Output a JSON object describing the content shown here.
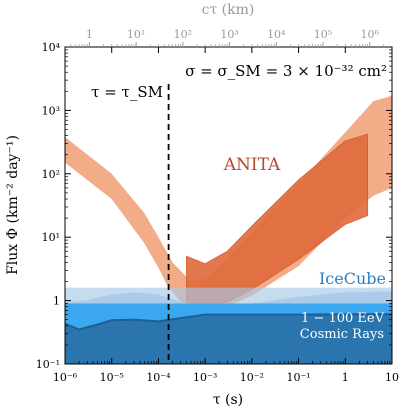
{
  "chart_data": {
    "type": "area",
    "xlabel": "τ (s)",
    "ylabel": "Flux Φ (km⁻² day⁻¹)",
    "top_xlabel": "cτ (km)",
    "xscale": "log",
    "yscale": "log",
    "xlim": [
      1e-06,
      10
    ],
    "ylim": [
      0.1,
      10000
    ],
    "top_xlim_km": [
      0.3,
      3000000
    ],
    "x_ticks": [
      {
        "value": 1e-06,
        "label": "10⁻⁶"
      },
      {
        "value": 1e-05,
        "label": "10⁻⁵"
      },
      {
        "value": 0.0001,
        "label": "10⁻⁴"
      },
      {
        "value": 0.001,
        "label": "10⁻³"
      },
      {
        "value": 0.01,
        "label": "10⁻²"
      },
      {
        "value": 0.1,
        "label": "10⁻¹"
      },
      {
        "value": 1,
        "label": "1"
      },
      {
        "value": 10,
        "label": "10"
      }
    ],
    "y_ticks": [
      {
        "value": 0.1,
        "label": "10⁻¹"
      },
      {
        "value": 1,
        "label": "1"
      },
      {
        "value": 10,
        "label": "10¹"
      },
      {
        "value": 100,
        "label": "10²"
      },
      {
        "value": 1000,
        "label": "10³"
      },
      {
        "value": 10000,
        "label": "10⁴"
      }
    ],
    "top_ticks": [
      {
        "value": 1,
        "label": "1"
      },
      {
        "value": 10,
        "label": "10¹"
      },
      {
        "value": 100,
        "label": "10²"
      },
      {
        "value": 1000,
        "label": "10³"
      },
      {
        "value": 10000,
        "label": "10⁴"
      },
      {
        "value": 100000,
        "label": "10⁵"
      },
      {
        "value": 1000000,
        "label": "10⁶"
      }
    ],
    "annotations": {
      "cross_section": "σ = σ_SM = 3 × 10⁻³² cm²",
      "tau_sm": "τ = τ_SM",
      "tau_sm_value": 0.000165
    },
    "series": [
      {
        "name": "ANITA",
        "role": "outer",
        "color": "#f0a078",
        "upper": [
          [
            3e-07,
            430
          ],
          [
            1e-06,
            380
          ],
          [
            1e-05,
            100
          ],
          [
            5e-05,
            24
          ],
          [
            0.0001,
            10
          ],
          [
            0.0002,
            4
          ],
          [
            0.0005,
            2.0
          ],
          [
            0.001,
            2.2
          ],
          [
            0.003,
            4.5
          ],
          [
            0.01,
            12
          ],
          [
            0.1,
            70
          ],
          [
            1,
            450
          ],
          [
            4,
            1400
          ],
          [
            10,
            1700
          ]
        ],
        "lower": [
          [
            10,
            60
          ],
          [
            4,
            45
          ],
          [
            1,
            20
          ],
          [
            0.1,
            3.5
          ],
          [
            0.01,
            1.2
          ],
          [
            0.003,
            0.8
          ],
          [
            0.001,
            0.72
          ],
          [
            0.0005,
            0.75
          ],
          [
            0.0003,
            0.95
          ],
          [
            0.00015,
            1.8
          ],
          [
            0.0001,
            3.3
          ],
          [
            5e-05,
            8
          ],
          [
            1e-05,
            40
          ],
          [
            1e-06,
            150
          ],
          [
            3e-07,
            350
          ]
        ]
      },
      {
        "name": "ANITA",
        "role": "inner",
        "color": "#e06a3c",
        "upper": [
          [
            0.0004,
            5.0
          ],
          [
            0.001,
            3.8
          ],
          [
            0.003,
            6.0
          ],
          [
            0.01,
            15
          ],
          [
            0.1,
            80
          ],
          [
            1,
            330
          ],
          [
            3,
            420
          ]
        ],
        "lower": [
          [
            3,
            22
          ],
          [
            1,
            16
          ],
          [
            0.1,
            4.5
          ],
          [
            0.01,
            1.5
          ],
          [
            0.003,
            0.95
          ],
          [
            0.001,
            0.82
          ],
          [
            0.0004,
            0.95
          ]
        ]
      },
      {
        "name": "IceCube",
        "role": "icecube",
        "color": "#8fc3ea",
        "upper": [
          [
            1e-06,
            0.95
          ],
          [
            3e-06,
            1.02
          ],
          [
            1e-05,
            1.25
          ],
          [
            3e-05,
            1.35
          ],
          [
            0.0001,
            1.25
          ],
          [
            0.0003,
            0.95
          ],
          [
            0.001,
            0.85
          ],
          [
            0.01,
            0.9
          ],
          [
            0.1,
            1.15
          ],
          [
            1,
            1.35
          ],
          [
            10,
            1.4
          ]
        ],
        "lower": [
          [
            10,
            0.1
          ],
          [
            1e-06,
            0.1
          ]
        ]
      },
      {
        "name": "1 − 100 EeV Cosmic Rays",
        "role": "band",
        "color": "#a9c8e6",
        "value": 1.6
      },
      {
        "name": "1 − 100 EeV Cosmic Rays",
        "role": "cosmic-upper",
        "color": "#3aa7ef",
        "value": 0.9
      },
      {
        "name": "1 − 100 EeV Cosmic Rays",
        "role": "cosmic-lower",
        "color": "#2a75ae",
        "line_color": "#1d5f95",
        "upper": [
          [
            1e-06,
            0.43
          ],
          [
            2e-06,
            0.35
          ],
          [
            5e-06,
            0.42
          ],
          [
            1e-05,
            0.49
          ],
          [
            3e-05,
            0.5
          ],
          [
            0.0001,
            0.47
          ],
          [
            0.0003,
            0.53
          ],
          [
            0.001,
            0.6
          ],
          [
            0.01,
            0.6
          ],
          [
            0.1,
            0.6
          ],
          [
            1,
            0.61
          ],
          [
            10,
            0.61
          ]
        ],
        "lower": [
          [
            10,
            0.1
          ],
          [
            1e-06,
            0.1
          ]
        ]
      }
    ],
    "labels": {
      "anita": "ANITA",
      "icecube": "IceCube",
      "cosmic_line1": "1 − 100 EeV",
      "cosmic_line2": "Cosmic Rays"
    },
    "colors": {
      "anita_text": "#b5482a",
      "icecube_text": "#2b7fc0",
      "cosmic_text": "#ffffff",
      "dashed": "#000000"
    }
  }
}
